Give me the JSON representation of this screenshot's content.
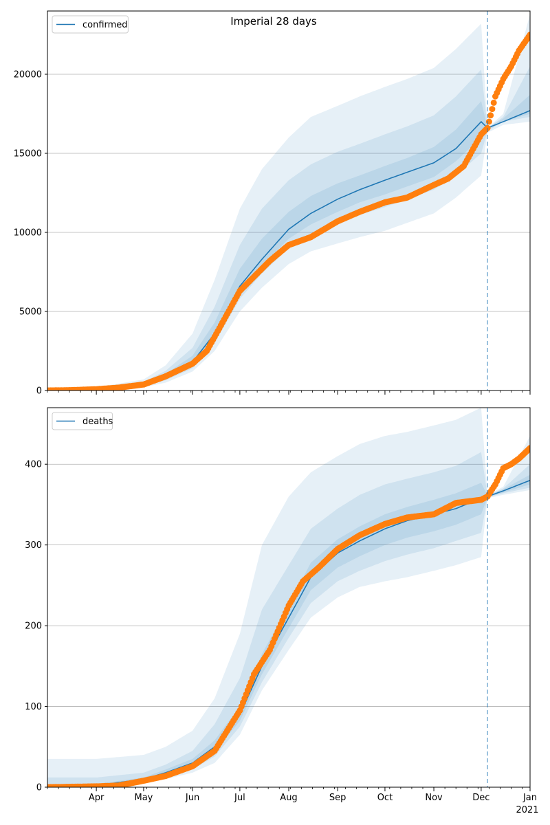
{
  "figure": {
    "title": "Imperial 28 days"
  },
  "chart_data": [
    {
      "type": "line",
      "legend": [
        "confirmed"
      ],
      "legend_position": "top-left",
      "grid": "horizontal",
      "x_range": [
        "2020-03-01",
        "2021-01-01"
      ],
      "ylim": [
        0,
        24000
      ],
      "yticks": [
        0,
        5000,
        10000,
        15000,
        20000
      ],
      "ytick_labels": [
        "0",
        "5000",
        "10000",
        "15000",
        "20000"
      ],
      "xtick_labels": [],
      "forecast_start": "2020-12-05",
      "colors": {
        "line": "#1f77b4",
        "observed": "#ff7f0e",
        "band": "#1f77b4"
      },
      "series_model": {
        "name": "confirmed",
        "x": [
          "2020-03-01",
          "2020-04-01",
          "2020-05-01",
          "2020-05-15",
          "2020-06-01",
          "2020-06-15",
          "2020-07-01",
          "2020-07-15",
          "2020-08-01",
          "2020-08-15",
          "2020-09-01",
          "2020-09-15",
          "2020-10-01",
          "2020-10-15",
          "2020-11-01",
          "2020-11-15",
          "2020-12-01",
          "2020-12-05",
          "2020-12-15",
          "2021-01-01"
        ],
        "values": [
          0,
          80,
          350,
          900,
          1800,
          3600,
          6600,
          8300,
          10200,
          11200,
          12100,
          12700,
          13300,
          13800,
          14400,
          15300,
          17000,
          16600,
          17000,
          17700
        ],
        "bands": [
          {
            "lower": [
              0,
              40,
              200,
              500,
              1200,
              2500,
              5000,
              6500,
              8000,
              8800,
              9300,
              9700,
              10100,
              10600,
              11200,
              12200,
              13600,
              16300,
              16800,
              17000
            ],
            "upper": [
              0,
              200,
              700,
              1600,
              3600,
              7000,
              11500,
              14000,
              16000,
              17300,
              18000,
              18600,
              19200,
              19700,
              20400,
              21600,
              23200,
              16600,
              17500,
              23800
            ]
          },
          {
            "lower": [
              0,
              60,
              250,
              650,
              1400,
              3000,
              5800,
              7400,
              9000,
              9900,
              10600,
              11100,
              11600,
              12100,
              12700,
              13600,
              15000,
              16400,
              17000,
              17300
            ],
            "upper": [
              0,
              140,
              550,
              1250,
              2700,
              5300,
              9200,
              11500,
              13300,
              14300,
              15100,
              15600,
              16200,
              16700,
              17400,
              18600,
              20300,
              16600,
              17300,
              20500
            ]
          },
          {
            "lower": [
              0,
              70,
              300,
              780,
              1600,
              3300,
              6200,
              7900,
              9600,
              10500,
              11300,
              11900,
              12400,
              12900,
              13500,
              14500,
              16000,
              16500,
              17000,
              17500
            ],
            "upper": [
              0,
              110,
              450,
              1050,
              2200,
              4300,
              7700,
              9600,
              11300,
              12300,
              13100,
              13600,
              14200,
              14700,
              15400,
              16500,
              18300,
              16600,
              17200,
              18700
            ]
          }
        ]
      },
      "series_observed": {
        "name": "observed",
        "x": [
          "2020-03-01",
          "2020-03-15",
          "2020-04-01",
          "2020-04-15",
          "2020-05-01",
          "2020-05-15",
          "2020-06-01",
          "2020-06-10",
          "2020-06-20",
          "2020-07-01",
          "2020-07-10",
          "2020-07-20",
          "2020-08-01",
          "2020-08-15",
          "2020-09-01",
          "2020-09-15",
          "2020-10-01",
          "2020-10-15",
          "2020-11-01",
          "2020-11-10",
          "2020-11-20",
          "2020-12-01",
          "2020-12-05",
          "2020-12-10",
          "2020-12-15",
          "2020-12-20",
          "2020-12-25",
          "2021-01-01"
        ],
        "values": [
          0,
          20,
          80,
          180,
          380,
          900,
          1700,
          2500,
          4300,
          6300,
          7200,
          8200,
          9200,
          9700,
          10700,
          11300,
          11900,
          12200,
          13000,
          13400,
          14200,
          16200,
          16600,
          18600,
          19700,
          20500,
          21500,
          22500
        ]
      }
    },
    {
      "type": "line",
      "legend": [
        "deaths"
      ],
      "legend_position": "top-left",
      "grid": "horizontal",
      "x_range": [
        "2020-03-01",
        "2021-01-01"
      ],
      "ylim": [
        0,
        470
      ],
      "yticks": [
        0,
        100,
        200,
        300,
        400
      ],
      "ytick_labels": [
        "0",
        "100",
        "200",
        "300",
        "400"
      ],
      "xtick_labels": [
        "Apr",
        "May",
        "Jun",
        "Jul",
        "Aug",
        "Sep",
        "Oct",
        "Nov",
        "Dec",
        "Jan",
        "2021"
      ],
      "forecast_start": "2020-12-05",
      "colors": {
        "line": "#1f77b4",
        "observed": "#ff7f0e",
        "band": "#1f77b4"
      },
      "series_model": {
        "name": "deaths",
        "x": [
          "2020-03-01",
          "2020-04-01",
          "2020-05-01",
          "2020-05-15",
          "2020-06-01",
          "2020-06-15",
          "2020-07-01",
          "2020-07-15",
          "2020-08-01",
          "2020-08-15",
          "2020-09-01",
          "2020-09-15",
          "2020-10-01",
          "2020-10-15",
          "2020-11-01",
          "2020-11-15",
          "2020-12-01",
          "2020-12-05",
          "2020-12-15",
          "2021-01-01"
        ],
        "values": [
          0,
          2,
          10,
          18,
          30,
          50,
          90,
          150,
          210,
          260,
          290,
          305,
          320,
          330,
          338,
          345,
          358,
          360,
          367,
          380
        ],
        "bands": [
          {
            "lower": [
              0,
              1,
              5,
              10,
              18,
              30,
              65,
              120,
              170,
              210,
              235,
              248,
              255,
              260,
              268,
              275,
              285,
              358,
              362,
              368
            ],
            "upper": [
              35,
              35,
              40,
              50,
              70,
              110,
              190,
              300,
              360,
              390,
              410,
              425,
              435,
              440,
              448,
              455,
              470,
              362,
              372,
              435
            ]
          },
          {
            "lower": [
              0,
              1,
              6,
              13,
              22,
              38,
              75,
              130,
              185,
              228,
              255,
              268,
              280,
              288,
              296,
              305,
              315,
              359,
              364,
              371
            ],
            "upper": [
              12,
              12,
              18,
              28,
              45,
              78,
              135,
              220,
              275,
              320,
              345,
              362,
              375,
              382,
              390,
              398,
              415,
              361,
              370,
              400
            ]
          },
          {
            "lower": [
              0,
              1,
              7,
              15,
              26,
              44,
              82,
              140,
              197,
              244,
              272,
              286,
              300,
              309,
              317,
              325,
              338,
              359,
              365,
              375
            ],
            "upper": [
              3,
              4,
              12,
              22,
              35,
              58,
              100,
              165,
              225,
              278,
              307,
              323,
              338,
              347,
              356,
              364,
              377,
              361,
              369,
              387
            ]
          }
        ]
      },
      "series_observed": {
        "name": "observed",
        "x": [
          "2020-03-01",
          "2020-04-01",
          "2020-04-15",
          "2020-05-01",
          "2020-05-15",
          "2020-06-01",
          "2020-06-15",
          "2020-07-01",
          "2020-07-10",
          "2020-07-20",
          "2020-08-01",
          "2020-08-10",
          "2020-08-20",
          "2020-09-01",
          "2020-09-15",
          "2020-10-01",
          "2020-10-15",
          "2020-11-01",
          "2020-11-15",
          "2020-12-01",
          "2020-12-05",
          "2020-12-10",
          "2020-12-15",
          "2020-12-20",
          "2020-12-25",
          "2021-01-01"
        ],
        "values": [
          0,
          1,
          2,
          8,
          14,
          26,
          45,
          95,
          140,
          170,
          225,
          255,
          272,
          295,
          312,
          326,
          334,
          338,
          352,
          356,
          360,
          375,
          395,
          400,
          407,
          420
        ]
      }
    }
  ]
}
